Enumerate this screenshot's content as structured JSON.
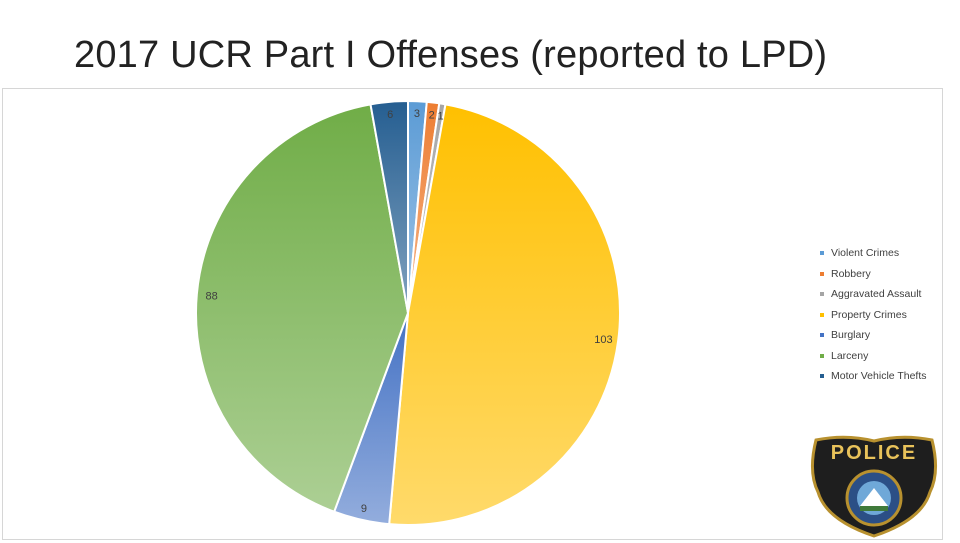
{
  "slide": {
    "title": "2017 UCR Part I Offenses (reported to LPD)"
  },
  "chart_data": {
    "type": "pie",
    "title": "",
    "categories": [
      "Violent Crimes",
      "Robbery",
      "Aggravated Assault",
      "Property Crimes",
      "Burglary",
      "Larceny",
      "Motor Vehicle Thefts"
    ],
    "values": [
      3,
      2,
      1,
      103,
      9,
      88,
      6
    ],
    "data_labels": [
      "3",
      "2",
      "1",
      "103",
      "9",
      "88",
      "6"
    ],
    "colors": [
      "#5b9bd5",
      "#ed7d31",
      "#a5a5a5",
      "#ffc000",
      "#4472c4",
      "#70ad47",
      "#255e91"
    ],
    "legend_position": "right"
  },
  "badge": {
    "text": "POLICE",
    "icon": "police-badge-icon"
  }
}
